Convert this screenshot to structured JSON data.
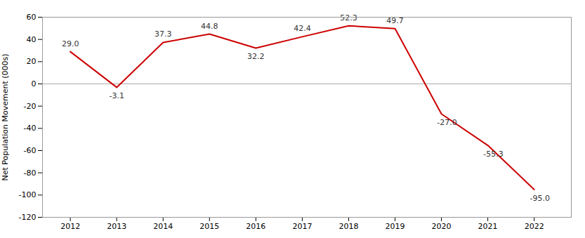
{
  "chart_data": {
    "type": "line",
    "ylabel": "Net Population Movement (000s)",
    "x": [
      2012,
      2013,
      2014,
      2015,
      2016,
      2017,
      2018,
      2019,
      2020,
      2021,
      2022
    ],
    "values": [
      29.0,
      -3.1,
      37.3,
      44.8,
      32.2,
      42.4,
      52.3,
      49.7,
      -27.0,
      -55.3,
      -95.0
    ],
    "value_labels": [
      "29.0",
      "-3.1",
      "37.3",
      "44.8",
      "32.2",
      "42.4",
      "52.3",
      "49.7",
      "-27.0",
      "-55.3",
      "-95.0"
    ],
    "color": "#cc0000",
    "xlim": [
      2011.4,
      2022.8
    ],
    "xticks": [
      2012,
      2013,
      2014,
      2015,
      2016,
      2017,
      2018,
      2019,
      2020,
      2021,
      2022
    ],
    "ylim": [
      -120,
      60
    ],
    "yticks": [
      -120,
      -100,
      -80,
      -60,
      -40,
      -20,
      0,
      20,
      40,
      60
    ],
    "data_labels": true,
    "grid": false
  }
}
